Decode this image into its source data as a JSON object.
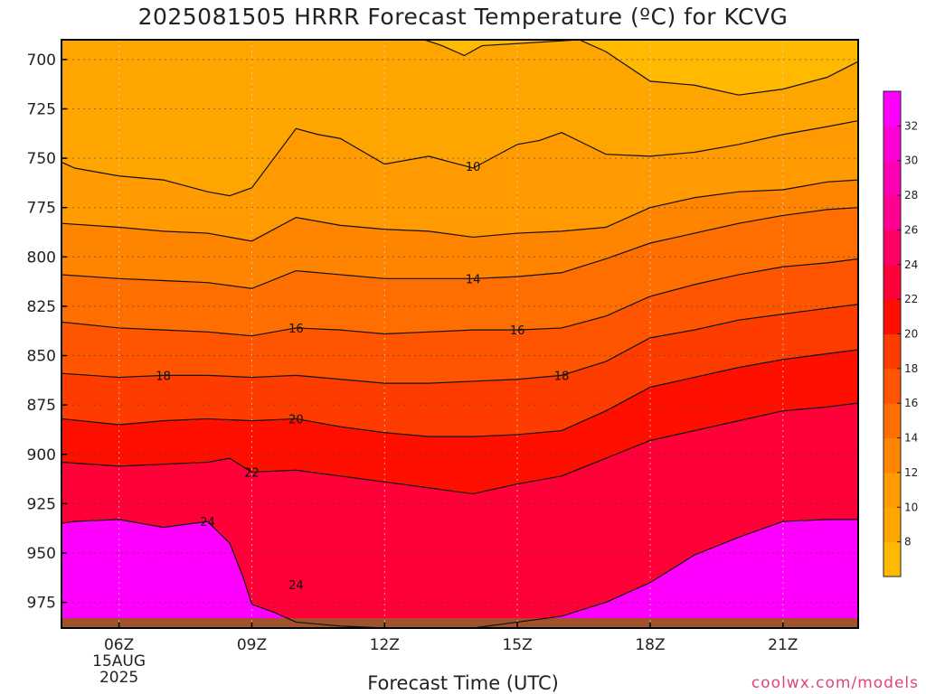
{
  "chart_data": {
    "type": "heatmap",
    "title": "2025081505 HRRR Forecast Temperature (ºC) for KCVG",
    "xlabel": "Forecast Time (UTC)",
    "ylabel": "",
    "credit": "coolwx.com/models",
    "x_range": [
      4.7,
      22.7
    ],
    "y_range": [
      690,
      988
    ],
    "y_ticks": [
      700,
      725,
      750,
      775,
      800,
      825,
      850,
      875,
      900,
      925,
      950,
      975
    ],
    "x_ticks": [
      {
        "hour": 6,
        "label": "06Z",
        "sub": [
          "15AUG",
          "2025"
        ]
      },
      {
        "hour": 9,
        "label": "09Z"
      },
      {
        "hour": 12,
        "label": "12Z"
      },
      {
        "hour": 15,
        "label": "15Z"
      },
      {
        "hour": 18,
        "label": "18Z"
      },
      {
        "hour": 21,
        "label": "21Z"
      }
    ],
    "grid": true,
    "colorbar": {
      "ticks": [
        8,
        10,
        12,
        14,
        16,
        18,
        20,
        22,
        24,
        26,
        28,
        30,
        32
      ],
      "colors": [
        "#ffb900",
        "#ffa500",
        "#ff9a00",
        "#ff8400",
        "#ff6e00",
        "#ff5500",
        "#ff3c00",
        "#ff0f00",
        "#ff0038",
        "#ff0066",
        "#ff0090",
        "#ff00b4",
        "#ff00d4",
        "#ff00ff"
      ]
    },
    "isotherms": [
      {
        "value": 8,
        "hours": [
          12.9,
          13.3,
          13.8,
          14.2,
          16.4,
          17,
          18,
          19,
          20,
          21,
          22,
          22.7
        ],
        "pressures": [
          690,
          693,
          698,
          693,
          690,
          696,
          711,
          713,
          718,
          715,
          709,
          701
        ]
      },
      {
        "value": 10,
        "hours": [
          4.7,
          5,
          6,
          7,
          8,
          8.5,
          9,
          9.5,
          10,
          10.5,
          11,
          12,
          13,
          14,
          15,
          15.5,
          16,
          17,
          18,
          19,
          20,
          21,
          22,
          22.7
        ],
        "pressures": [
          752,
          755,
          759,
          761,
          767,
          769,
          765,
          750,
          735,
          738,
          740,
          753,
          749,
          755,
          743,
          741,
          737,
          748,
          749,
          747,
          743,
          738,
          734,
          731
        ]
      },
      {
        "value": 12,
        "hours": [
          4.7,
          6,
          7,
          8,
          9,
          10,
          11,
          12,
          13,
          14,
          15,
          16,
          17,
          18,
          19,
          20,
          21,
          22,
          22.7
        ],
        "pressures": [
          783,
          785,
          787,
          788,
          792,
          780,
          784,
          786,
          787,
          790,
          788,
          787,
          785,
          775,
          770,
          767,
          766,
          762,
          761
        ]
      },
      {
        "value": 14,
        "hours": [
          4.7,
          6,
          7,
          8,
          9,
          10,
          11,
          12,
          13,
          14,
          15,
          16,
          17,
          18,
          19,
          20,
          21,
          22,
          22.7
        ],
        "pressures": [
          809,
          811,
          812,
          813,
          816,
          807,
          809,
          811,
          811,
          811,
          810,
          808,
          801,
          793,
          788,
          783,
          779,
          776,
          775
        ]
      },
      {
        "value": 16,
        "hours": [
          4.7,
          6,
          7,
          8,
          9,
          10,
          11,
          12,
          13,
          14,
          15,
          16,
          17,
          18,
          19,
          20,
          21,
          22,
          22.7
        ],
        "pressures": [
          833,
          836,
          837,
          838,
          840,
          836,
          837,
          839,
          838,
          837,
          837,
          836,
          830,
          820,
          814,
          809,
          805,
          803,
          801
        ]
      },
      {
        "value": 18,
        "hours": [
          4.7,
          6,
          7,
          8,
          9,
          10,
          11,
          12,
          13,
          14,
          15,
          16,
          17,
          18,
          19,
          20,
          21,
          22,
          22.7
        ],
        "pressures": [
          859,
          861,
          860,
          860,
          861,
          860,
          862,
          864,
          864,
          863,
          862,
          860,
          853,
          841,
          837,
          832,
          829,
          826,
          824
        ]
      },
      {
        "value": 20,
        "hours": [
          4.7,
          6,
          7,
          8,
          9,
          10,
          11,
          12,
          13,
          14,
          15,
          16,
          17,
          18,
          19,
          20,
          21,
          22,
          22.7
        ],
        "pressures": [
          882,
          885,
          883,
          882,
          883,
          882,
          886,
          889,
          891,
          891,
          890,
          888,
          878,
          866,
          861,
          856,
          852,
          849,
          847
        ]
      },
      {
        "value": 22,
        "hours": [
          4.7,
          6,
          7,
          8,
          8.5,
          9,
          10,
          11,
          12,
          13,
          14,
          15,
          16,
          17,
          18,
          19,
          20,
          21,
          22,
          22.7
        ],
        "pressures": [
          904,
          906,
          905,
          904,
          902,
          909,
          908,
          911,
          914,
          917,
          920,
          915,
          911,
          902,
          893,
          888,
          883,
          878,
          876,
          874
        ]
      },
      {
        "value": 24,
        "hours": [
          4.7,
          5,
          6,
          7,
          8,
          8.5,
          8.8,
          9,
          9.5,
          10,
          11,
          12,
          13,
          14,
          15,
          16,
          17,
          18,
          19,
          20,
          21,
          22,
          22.7
        ],
        "pressures": [
          935,
          934,
          933,
          937,
          934,
          945,
          962,
          976,
          980,
          985,
          987,
          988,
          988,
          988,
          985,
          982,
          975,
          965,
          951,
          942,
          934,
          933,
          933
        ]
      }
    ],
    "contour_labels": [
      {
        "value": "10",
        "hour": 14,
        "pressure": 754
      },
      {
        "value": "14",
        "hour": 14,
        "pressure": 811
      },
      {
        "value": "16",
        "hour": 10,
        "pressure": 836
      },
      {
        "value": "16",
        "hour": 15,
        "pressure": 837
      },
      {
        "value": "18",
        "hour": 7,
        "pressure": 860
      },
      {
        "value": "18",
        "hour": 16,
        "pressure": 860
      },
      {
        "value": "20",
        "hour": 10,
        "pressure": 882
      },
      {
        "value": "22",
        "hour": 9,
        "pressure": 909
      },
      {
        "value": "24",
        "hour": 8,
        "pressure": 934
      },
      {
        "value": "24",
        "hour": 10,
        "pressure": 966
      }
    ],
    "ground_pressure": 983
  }
}
